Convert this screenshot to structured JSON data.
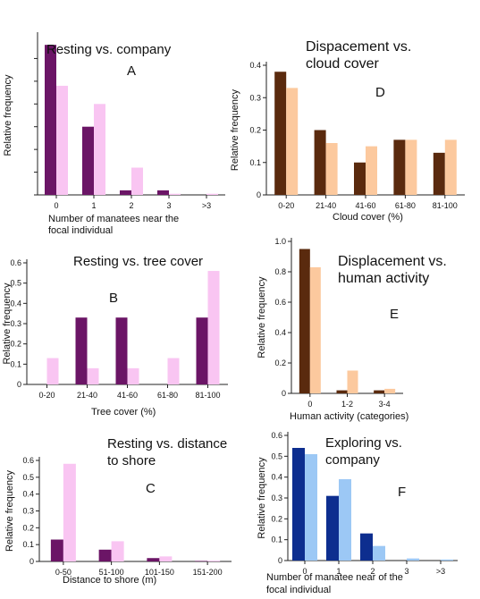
{
  "chart_data": [
    {
      "panel": "A",
      "type": "bar",
      "title": "Resting vs. company",
      "letter": "A",
      "xlabel": "Number of manatees near the focal individual",
      "ylabel": "Relative frequency",
      "categories": [
        "0",
        "1",
        "2",
        "3",
        ">3"
      ],
      "series": [
        {
          "values": [
            0.66,
            0.3,
            0.02,
            0.02,
            0.0
          ],
          "color": "#6b1566"
        },
        {
          "values": [
            0.48,
            0.4,
            0.12,
            0.005,
            0.005
          ],
          "color": "#f9c5f2"
        }
      ],
      "ylim": [
        0,
        0.7
      ],
      "yticks": [],
      "grid": false
    },
    {
      "panel": "D",
      "type": "bar",
      "title": "Dispacement vs. cloud cover",
      "title_lines": [
        "Dispacement vs.",
        "cloud cover"
      ],
      "letter": "D",
      "xlabel": "Cloud cover (%)",
      "ylabel": "Relative frequency",
      "categories": [
        "0-20",
        "21-40",
        "41-60",
        "61-80",
        "81-100"
      ],
      "series": [
        {
          "values": [
            0.38,
            0.2,
            0.1,
            0.17,
            0.13
          ],
          "color": "#5a2a0e"
        },
        {
          "values": [
            0.33,
            0.16,
            0.15,
            0.17,
            0.17
          ],
          "color": "#fcc99e"
        }
      ],
      "ylim": [
        0,
        0.4
      ],
      "yticks": [
        "0",
        "0.1",
        "0.2",
        "0.3",
        "0.4"
      ],
      "grid": false
    },
    {
      "panel": "B",
      "type": "bar",
      "title": "Resting vs. tree cover",
      "letter": "B",
      "xlabel": "Tree cover (%)",
      "ylabel": "Relative frequency",
      "categories": [
        "0-20",
        "21-40",
        "41-60",
        "61-80",
        "81-100"
      ],
      "series": [
        {
          "values": [
            0,
            0.33,
            0.33,
            0,
            0.33
          ],
          "color": "#6b1566"
        },
        {
          "values": [
            0.13,
            0.08,
            0.08,
            0.13,
            0.56
          ],
          "color": "#f9c5f2"
        }
      ],
      "ylim": [
        0,
        0.6
      ],
      "yticks": [
        "0",
        "0.1",
        "0.2",
        "0.3",
        "0.4",
        "0.5",
        "0.6"
      ],
      "grid": false
    },
    {
      "panel": "E",
      "type": "bar",
      "title": "Displacement vs. human activity",
      "title_lines": [
        "Displacement vs.",
        "human activity"
      ],
      "letter": "E",
      "xlabel": "Human activity (categories)",
      "ylabel": "Relative frequency",
      "categories": [
        "0",
        "1-2",
        "3-4"
      ],
      "series": [
        {
          "values": [
            0.95,
            0.02,
            0.02
          ],
          "color": "#5a2a0e"
        },
        {
          "values": [
            0.83,
            0.15,
            0.03
          ],
          "color": "#fcc99e"
        }
      ],
      "ylim": [
        0,
        1.0
      ],
      "yticks": [
        "0",
        "0.2",
        "0.4",
        "0.6",
        "0.8",
        "1.0"
      ],
      "grid": false
    },
    {
      "panel": "C",
      "type": "bar",
      "title": "Resting vs. distance to shore",
      "title_lines": [
        "Resting vs. distance",
        "to shore"
      ],
      "letter": "C",
      "xlabel": "Distance to shore (m)",
      "ylabel": "Relative frequency",
      "categories": [
        "0-50",
        "51-100",
        "101-150",
        "151-200"
      ],
      "series": [
        {
          "values": [
            0.13,
            0.07,
            0.02,
            0.003
          ],
          "color": "#6b1566"
        },
        {
          "values": [
            0.58,
            0.12,
            0.03,
            0.005
          ],
          "color": "#f9c5f2"
        }
      ],
      "ylim": [
        0,
        0.6
      ],
      "yticks": [
        "0",
        "0.1",
        "0.2",
        "0.3",
        "0.4",
        "0.5",
        "0.6"
      ],
      "grid": false
    },
    {
      "panel": "F",
      "type": "bar",
      "title": "Exploring vs. company",
      "title_lines": [
        "Exploring vs.",
        "company"
      ],
      "letter": "F",
      "xlabel": "Number of manatee near of the focal individual",
      "ylabel": "Relative frequency",
      "categories": [
        "0",
        "1",
        "2",
        "3",
        ">3"
      ],
      "series": [
        {
          "values": [
            0.54,
            0.31,
            0.13,
            0.0,
            0.0
          ],
          "color": "#0d2e8f"
        },
        {
          "values": [
            0.51,
            0.39,
            0.07,
            0.01,
            0.005
          ],
          "color": "#9cc8f5"
        }
      ],
      "ylim": [
        0,
        0.6
      ],
      "yticks": [
        "0",
        "0.1",
        "0.2",
        "0.3",
        "0.4",
        "0.5",
        "0.6"
      ],
      "grid": false
    }
  ]
}
